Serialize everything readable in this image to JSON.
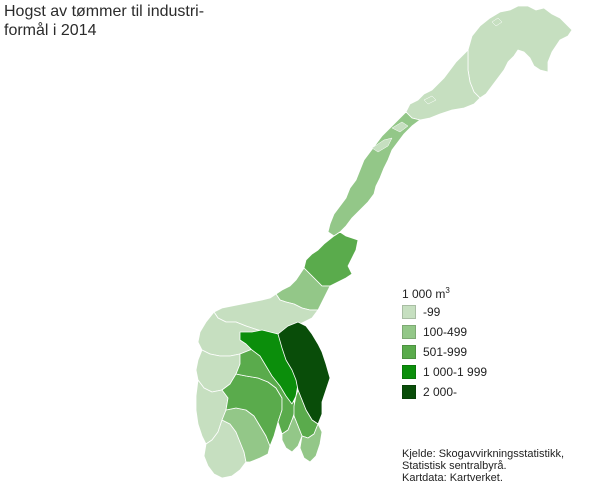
{
  "title": "Hogst av tømmer til industri-formål i 2014",
  "title_lines": [
    "Hogst av tømmer til industri-",
    "formål i 2014"
  ],
  "legend": {
    "title": "1 000 m",
    "title_sup": "3",
    "items": [
      {
        "label": "-99",
        "color": "#c6dfc0"
      },
      {
        "label": "100-499",
        "color": "#93c788"
      },
      {
        "label": "501-999",
        "color": "#5aab4c"
      },
      {
        "label": "1 000-1 999",
        "color": "#0b8e0b"
      },
      {
        "label": "2 000-",
        "color": "#094d09"
      }
    ]
  },
  "source": {
    "line1": "Kjelde: Skogavvirkningsstatistikk,",
    "line2": "Statistisk sentralbyrå.",
    "line3": "Kartdata: Kartverket."
  },
  "map_regions": [
    {
      "name": "Finnmark",
      "class": "-99"
    },
    {
      "name": "Troms",
      "class": "-99"
    },
    {
      "name": "Nordland",
      "class": "100-499"
    },
    {
      "name": "Nord-Trøndelag",
      "class": "501-999"
    },
    {
      "name": "Sør-Trøndelag",
      "class": "100-499"
    },
    {
      "name": "Møre og Romsdal",
      "class": "-99"
    },
    {
      "name": "Sogn og Fjordane",
      "class": "-99"
    },
    {
      "name": "Hordaland",
      "class": "-99"
    },
    {
      "name": "Rogaland",
      "class": "-99"
    },
    {
      "name": "Vest-Agder",
      "class": "-99"
    },
    {
      "name": "Aust-Agder",
      "class": "100-499"
    },
    {
      "name": "Telemark",
      "class": "501-999"
    },
    {
      "name": "Buskerud",
      "class": "501-999"
    },
    {
      "name": "Vestfold",
      "class": "100-499"
    },
    {
      "name": "Oppland",
      "class": "1 000-1 999"
    },
    {
      "name": "Hedmark",
      "class": "2 000-"
    },
    {
      "name": "Akershus",
      "class": "501-999"
    },
    {
      "name": "Østfold",
      "class": "100-499"
    }
  ]
}
